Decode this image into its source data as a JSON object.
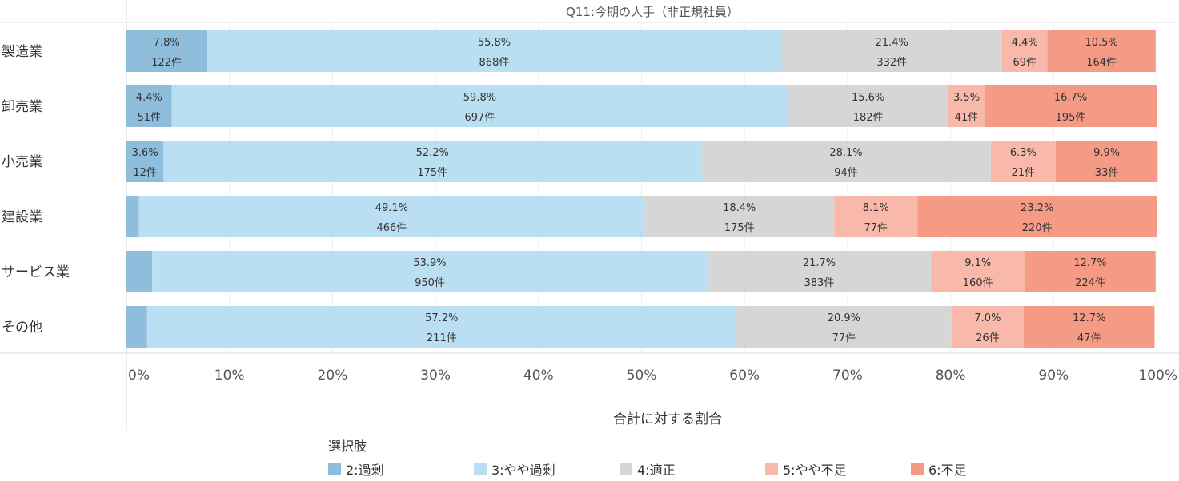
{
  "chart_data": {
    "type": "bar",
    "orientation": "horizontal",
    "stacked": "percent",
    "title": "Q11:今期の人手（非正規社員）",
    "xlabel": "合計に対する割合",
    "ylabel": "",
    "xlim": [
      0,
      100
    ],
    "x_ticks": [
      "0%",
      "10%",
      "20%",
      "30%",
      "40%",
      "50%",
      "60%",
      "70%",
      "80%",
      "90%",
      "100%"
    ],
    "categories": [
      "製造業",
      "卸売業",
      "小売業",
      "建設業",
      "サービス業",
      "その他"
    ],
    "legend_title": "選択肢",
    "legend_position": "bottom",
    "series": [
      {
        "name": "2:過剰",
        "color": "#8fbedc",
        "values": [
          7.8,
          4.4,
          3.6,
          1.2,
          2.5,
          2.0
        ],
        "pct_labels": [
          "7.8%",
          "4.4%",
          "3.6%",
          "",
          "",
          ""
        ],
        "count_labels": [
          "122件",
          "51件",
          "12件",
          "",
          "",
          ""
        ]
      },
      {
        "name": "3:やや過剰",
        "color": "#badef2",
        "values": [
          55.8,
          59.8,
          52.2,
          49.1,
          53.9,
          57.2
        ],
        "pct_labels": [
          "55.8%",
          "59.8%",
          "52.2%",
          "49.1%",
          "53.9%",
          "57.2%"
        ],
        "count_labels": [
          "868件",
          "697件",
          "175件",
          "466件",
          "950件",
          "211件"
        ]
      },
      {
        "name": "4:適正",
        "color": "#d6d6d6",
        "values": [
          21.4,
          15.6,
          28.1,
          18.4,
          21.7,
          20.9
        ],
        "pct_labels": [
          "21.4%",
          "15.6%",
          "28.1%",
          "18.4%",
          "21.7%",
          "20.9%"
        ],
        "count_labels": [
          "332件",
          "182件",
          "94件",
          "175件",
          "383件",
          "77件"
        ]
      },
      {
        "name": "5:やや不足",
        "color": "#f9b9aa",
        "values": [
          4.4,
          3.5,
          6.3,
          8.1,
          9.1,
          7.0
        ],
        "pct_labels": [
          "4.4%",
          "3.5%",
          "6.3%",
          "8.1%",
          "9.1%",
          "7.0%"
        ],
        "count_labels": [
          "69件",
          "41件",
          "21件",
          "77件",
          "160件",
          "26件"
        ]
      },
      {
        "name": "6:不足",
        "color": "#f59a85",
        "values": [
          10.5,
          16.7,
          9.9,
          23.2,
          12.7,
          12.7
        ],
        "pct_labels": [
          "10.5%",
          "16.7%",
          "9.9%",
          "23.2%",
          "12.7%",
          "12.7%"
        ],
        "count_labels": [
          "164件",
          "195件",
          "33件",
          "220件",
          "224件",
          "47件"
        ]
      }
    ]
  }
}
